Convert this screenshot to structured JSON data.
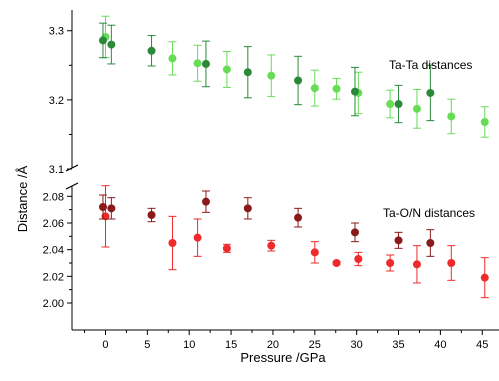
{
  "chart_data": {
    "type": "scatter",
    "xlabel": "Pressure /GPa",
    "ylabel": "Distance /Å",
    "xlim": [
      -4,
      47
    ],
    "x_ticks": [
      0,
      5,
      10,
      15,
      20,
      25,
      30,
      35,
      40,
      45
    ],
    "panels": [
      {
        "name": "upper",
        "ylim": [
          3.1,
          3.33
        ],
        "y_ticks": [
          3.1,
          3.2,
          3.3
        ],
        "annotation": "Ta-Ta distances"
      },
      {
        "name": "lower",
        "ylim": [
          2.0,
          2.09
        ],
        "y_ticks": [
          2.0,
          2.02,
          2.04,
          2.06,
          2.08
        ],
        "annotation": "Ta-O/N distances"
      }
    ],
    "series": [
      {
        "panel": "upper",
        "color": "#66dd55",
        "points": [
          {
            "x": 0.0,
            "y": 3.291,
            "err": 0.03
          },
          {
            "x": 8.0,
            "y": 3.26,
            "err": 0.024
          },
          {
            "x": 11.0,
            "y": 3.253,
            "err": 0.026
          },
          {
            "x": 14.5,
            "y": 3.244,
            "err": 0.026
          },
          {
            "x": 19.8,
            "y": 3.235,
            "err": 0.03
          },
          {
            "x": 25.0,
            "y": 3.217,
            "err": 0.026
          },
          {
            "x": 27.6,
            "y": 3.216,
            "err": 0.015
          },
          {
            "x": 30.2,
            "y": 3.21,
            "err": 0.03
          },
          {
            "x": 34.0,
            "y": 3.194,
            "err": 0.02
          },
          {
            "x": 37.2,
            "y": 3.187,
            "err": 0.028
          },
          {
            "x": 41.3,
            "y": 3.176,
            "err": 0.025
          },
          {
            "x": 45.3,
            "y": 3.168,
            "err": 0.022
          }
        ]
      },
      {
        "panel": "upper",
        "color": "#2a8a3a",
        "points": [
          {
            "x": -0.3,
            "y": 3.286,
            "err": 0.025
          },
          {
            "x": 0.7,
            "y": 3.28,
            "err": 0.028
          },
          {
            "x": 5.5,
            "y": 3.271,
            "err": 0.022
          },
          {
            "x": 12.0,
            "y": 3.252,
            "err": 0.033
          },
          {
            "x": 17.0,
            "y": 3.24,
            "err": 0.037
          },
          {
            "x": 23.0,
            "y": 3.228,
            "err": 0.035
          },
          {
            "x": 29.8,
            "y": 3.212,
            "err": 0.035
          },
          {
            "x": 35.0,
            "y": 3.194,
            "err": 0.027
          },
          {
            "x": 38.8,
            "y": 3.21,
            "err": 0.04
          }
        ]
      },
      {
        "panel": "lower",
        "color": "#ee2a2a",
        "points": [
          {
            "x": 0.0,
            "y": 2.065,
            "err": 0.023
          },
          {
            "x": 8.0,
            "y": 2.045,
            "err": 0.02
          },
          {
            "x": 11.0,
            "y": 2.049,
            "err": 0.014
          },
          {
            "x": 14.5,
            "y": 2.041,
            "err": 0.003
          },
          {
            "x": 19.8,
            "y": 2.043,
            "err": 0.004
          },
          {
            "x": 25.0,
            "y": 2.038,
            "err": 0.008
          },
          {
            "x": 27.6,
            "y": 2.03,
            "err": 0.001
          },
          {
            "x": 30.2,
            "y": 2.033,
            "err": 0.005
          },
          {
            "x": 34.0,
            "y": 2.03,
            "err": 0.006
          },
          {
            "x": 37.2,
            "y": 2.029,
            "err": 0.014
          },
          {
            "x": 41.3,
            "y": 2.03,
            "err": 0.013
          },
          {
            "x": 45.3,
            "y": 2.019,
            "err": 0.015
          }
        ]
      },
      {
        "panel": "lower",
        "color": "#8b1a1a",
        "points": [
          {
            "x": -0.3,
            "y": 2.072,
            "err": 0.009
          },
          {
            "x": 0.7,
            "y": 2.071,
            "err": 0.008
          },
          {
            "x": 5.5,
            "y": 2.066,
            "err": 0.005
          },
          {
            "x": 12.0,
            "y": 2.076,
            "err": 0.008
          },
          {
            "x": 17.0,
            "y": 2.071,
            "err": 0.008
          },
          {
            "x": 23.0,
            "y": 2.064,
            "err": 0.007
          },
          {
            "x": 29.8,
            "y": 2.053,
            "err": 0.007
          },
          {
            "x": 35.0,
            "y": 2.047,
            "err": 0.006
          },
          {
            "x": 38.8,
            "y": 2.045,
            "err": 0.01
          }
        ]
      }
    ]
  }
}
